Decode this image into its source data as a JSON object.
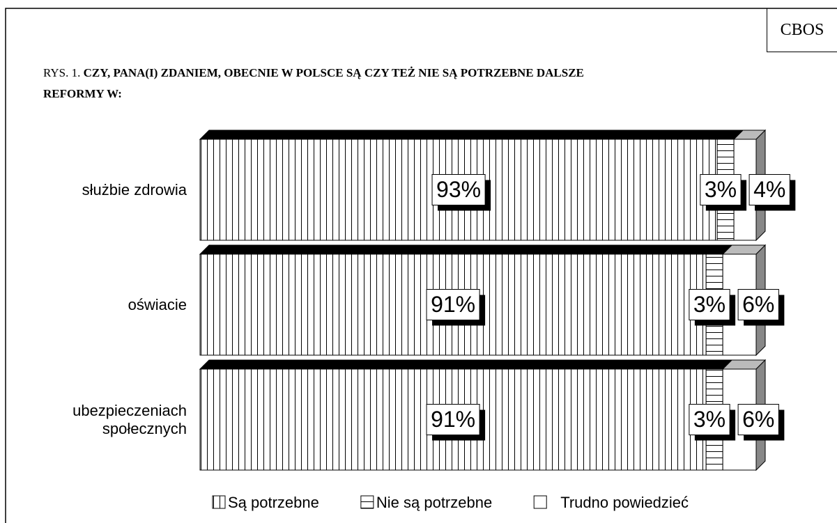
{
  "badge": "CBOS",
  "chart_data": {
    "type": "stacked-bar-3d",
    "figure_label": "RYS. 1.",
    "title": "CZY, PANA(I) ZDANIEM, OBECNIE W POLSCE SĄ CZY TEŻ NIE SĄ POTRZEBNE DALSZE REFORMY W:",
    "categories": [
      "służbie zdrowia",
      "oświacie",
      "ubezpieczeniach społecznych"
    ],
    "xlim": [
      0,
      100
    ],
    "series": [
      {
        "name": "Są potrzebne",
        "hatch": "vertical",
        "color": "#000000",
        "values": [
          93,
          91,
          91
        ],
        "value_labels": [
          "93%",
          "91%",
          "91%"
        ]
      },
      {
        "name": "Nie są potrzebne",
        "hatch": "horizontal",
        "color": "#000000",
        "values": [
          3,
          3,
          3
        ],
        "value_labels": [
          "3%",
          "3%",
          "3%"
        ]
      },
      {
        "name": "Trudno powiedzieć",
        "hatch": "none",
        "color": "#bbbbbb",
        "values": [
          4,
          6,
          6
        ],
        "value_labels": [
          "4%",
          "6%",
          "6%"
        ]
      }
    ]
  }
}
